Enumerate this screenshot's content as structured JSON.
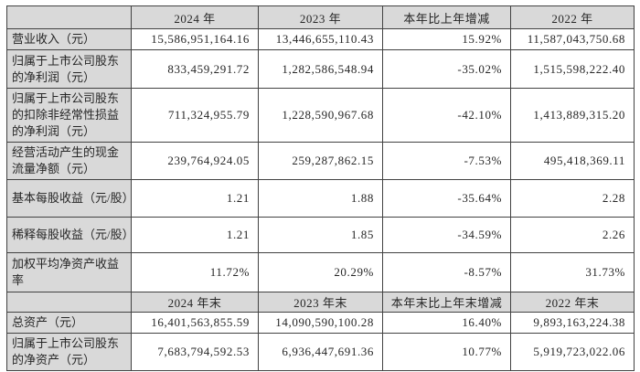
{
  "colors": {
    "header_bg": "#d9d9d9",
    "label_bg": "#d9d9d9",
    "border": "#424242",
    "text": "#262626",
    "cell_bg": "#ffffff"
  },
  "table": {
    "section1": {
      "headers": {
        "blank": "",
        "y2024": "2024 年",
        "y2023": "2023 年",
        "change": "本年比上年增减",
        "y2022": "2022 年"
      },
      "rows": [
        {
          "label": "营业收入（元）",
          "v2024": "15,586,951,164.16",
          "v2023": "13,446,655,110.43",
          "change": "15.92%",
          "v2022": "11,587,043,750.68"
        },
        {
          "label": "归属于上市公司股东的净利润（元）",
          "v2024": "833,459,291.72",
          "v2023": "1,282,586,548.94",
          "change": "-35.02%",
          "v2022": "1,515,598,222.40"
        },
        {
          "label": "归属于上市公司股东的扣除非经常性损益的净利润（元）",
          "v2024": "711,324,955.79",
          "v2023": "1,228,590,967.68",
          "change": "-42.10%",
          "v2022": "1,413,889,315.20"
        },
        {
          "label": "经营活动产生的现金流量净额（元）",
          "v2024": "239,764,924.05",
          "v2023": "259,287,862.15",
          "change": "-7.53%",
          "v2022": "495,418,369.11"
        },
        {
          "label": "基本每股收益（元/股）",
          "v2024": "1.21",
          "v2023": "1.88",
          "change": "-35.64%",
          "v2022": "2.28"
        },
        {
          "label": "稀释每股收益（元/股）",
          "v2024": "1.21",
          "v2023": "1.85",
          "change": "-34.59%",
          "v2022": "2.26"
        },
        {
          "label": "加权平均净资产收益率",
          "v2024": "11.72%",
          "v2023": "20.29%",
          "change": "-8.57%",
          "v2022": "31.73%"
        }
      ]
    },
    "section2": {
      "headers": {
        "blank": "",
        "y2024": "2024 年末",
        "y2023": "2023 年末",
        "change": "本年末比上年末增减",
        "y2022": "2022 年末"
      },
      "rows": [
        {
          "label": "总资产（元）",
          "v2024": "16,401,563,855.59",
          "v2023": "14,090,590,100.28",
          "change": "16.40%",
          "v2022": "9,893,163,224.38"
        },
        {
          "label": "归属于上市公司股东的净资产（元）",
          "v2024": "7,683,794,592.53",
          "v2023": "6,936,447,691.36",
          "change": "10.77%",
          "v2022": "5,919,723,022.06"
        }
      ]
    }
  }
}
